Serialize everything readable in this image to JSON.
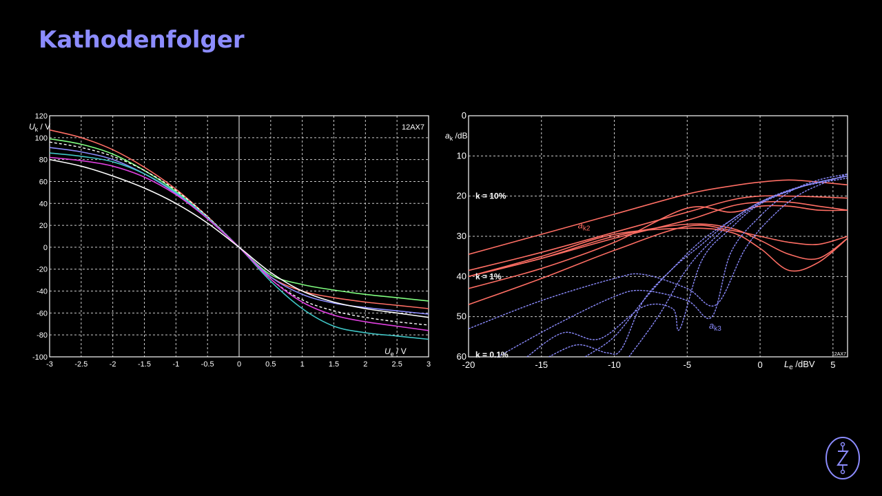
{
  "slide": {
    "title": "Kathodenfolger"
  },
  "colors": {
    "title": "#8c8cff",
    "grid": "#cfcfcf",
    "red": "#ff6e64",
    "blue": "#8c8cff"
  },
  "chart_data": [
    {
      "type": "line",
      "annotation": "12AX7",
      "ylabel_main": "U",
      "ylabel_sub": "k",
      "ylabel_unit": " / V",
      "xlabel_main": "U",
      "xlabel_sub": "e",
      "xlabel_unit": " / V",
      "xlim": [
        -3,
        3
      ],
      "ylim": [
        -100,
        120
      ],
      "xticks": [
        -3,
        -2.5,
        -2,
        -1.5,
        -1,
        -0.5,
        0,
        0.5,
        1,
        1.5,
        2,
        2.5,
        3
      ],
      "xtick_labels": [
        "-3",
        "-2.5",
        "-2",
        "-1.5",
        "-1",
        "-0.5",
        "0",
        "0.5",
        "1",
        "1.5",
        "2",
        "2.5",
        "3"
      ],
      "yticks": [
        -100,
        -80,
        -60,
        -40,
        -20,
        0,
        20,
        40,
        60,
        80,
        100,
        120
      ],
      "ytick_labels": [
        "-100",
        "-80",
        "-60",
        "-40",
        "-20",
        "0",
        "20",
        "40",
        "60",
        "80",
        "100",
        "120"
      ],
      "grid": true,
      "series": [
        {
          "color": "#ff6e64",
          "dashed": false,
          "x": [
            -3,
            -2.5,
            -2,
            -1.5,
            -1,
            -0.5,
            0,
            0.5,
            1,
            1.5,
            2,
            2.5,
            3
          ],
          "y": [
            107,
            100,
            89,
            73,
            53,
            28,
            0,
            -27,
            -40,
            -46,
            -50,
            -53,
            -56
          ]
        },
        {
          "color": "#80ff80",
          "dashed": false,
          "x": [
            -3,
            -2.5,
            -2,
            -1.5,
            -1,
            -0.5,
            0,
            0.5,
            1,
            1.5,
            2,
            2.5,
            3
          ],
          "y": [
            99,
            94,
            85,
            70,
            51,
            27,
            0,
            -25,
            -34,
            -39,
            -43,
            -46,
            -49
          ]
        },
        {
          "color": "#ffffff",
          "dashed": true,
          "x": [
            -3,
            -2.5,
            -2,
            -1.5,
            -1,
            -0.5,
            0,
            0.5,
            1,
            1.5,
            2,
            2.5,
            3
          ],
          "y": [
            96,
            91,
            83,
            70,
            52,
            28,
            0,
            -29,
            -48,
            -58,
            -64,
            -68,
            -71
          ]
        },
        {
          "color": "#8c8cff",
          "dashed": false,
          "x": [
            -3,
            -2.5,
            -2,
            -1.5,
            -1,
            -0.5,
            0,
            0.5,
            1,
            1.5,
            2,
            2.5,
            3
          ],
          "y": [
            91,
            87,
            80,
            67,
            49,
            26,
            0,
            -27,
            -43,
            -51,
            -55,
            -58,
            -61
          ]
        },
        {
          "color": "#40c8c8",
          "dashed": false,
          "x": [
            -3,
            -2.5,
            -2,
            -1.5,
            -1,
            -0.5,
            0,
            0.5,
            1,
            1.5,
            2,
            2.5,
            3
          ],
          "y": [
            86,
            83,
            78,
            67,
            50,
            27,
            0,
            -31,
            -56,
            -72,
            -78,
            -81,
            -84
          ]
        },
        {
          "color": "#e040e0",
          "dashed": false,
          "x": [
            -3,
            -2.5,
            -2,
            -1.5,
            -1,
            -0.5,
            0,
            0.5,
            1,
            1.5,
            2,
            2.5,
            3
          ],
          "y": [
            82,
            79,
            74,
            64,
            48,
            26,
            0,
            -29,
            -50,
            -62,
            -68,
            -72,
            -76
          ]
        },
        {
          "color": "#ffffff",
          "dashed": false,
          "x": [
            -3,
            -2.5,
            -2,
            -1.5,
            -1,
            -0.5,
            0,
            0.5,
            1,
            1.5,
            2,
            2.5,
            3
          ],
          "y": [
            80,
            74,
            65,
            54,
            40,
            22,
            0,
            -23,
            -40,
            -50,
            -56,
            -60,
            -64
          ]
        }
      ]
    },
    {
      "type": "line",
      "ylabel_main": "a",
      "ylabel_sub": "k",
      "ylabel_unit": " /dB",
      "xlabel_main": "L",
      "xlabel_sub": "e",
      "xlabel_unit": " /dBV",
      "xlim": [
        -20,
        6
      ],
      "ylim": [
        0,
        60
      ],
      "y_inverted": true,
      "xticks": [
        -20,
        -15,
        -10,
        -5,
        0,
        5
      ],
      "xtick_labels": [
        "-20",
        "-15",
        "-10",
        "-5",
        "0",
        "5"
      ],
      "yticks": [
        0,
        10,
        20,
        30,
        40,
        50,
        60
      ],
      "ytick_labels": [
        "0",
        "10",
        "20",
        "30",
        "40",
        "50",
        "60"
      ],
      "grid": true,
      "annotations": [
        {
          "text": "k = 10%",
          "x": -20,
          "y": 20
        },
        {
          "text": "k = 1%",
          "x": -20,
          "y": 40
        },
        {
          "text": "k = 0.1%",
          "x": -20,
          "y": 60
        }
      ],
      "series_labels": [
        {
          "main": "a",
          "sub": "k2",
          "color": "#ff6e64",
          "x": -12.5,
          "y": 28
        },
        {
          "main": "a",
          "sub": "k3",
          "color": "#8c8cff",
          "x": -3.5,
          "y": 53
        }
      ],
      "corner_label": "12AX7",
      "series": [
        {
          "group": "k2",
          "color": "#ff6e64",
          "dashed": false,
          "x": [
            -20,
            -15,
            -10,
            -5,
            -2,
            0,
            2,
            4,
            6
          ],
          "y": [
            34.5,
            29.5,
            24.5,
            19.5,
            17.5,
            16.5,
            16,
            16.5,
            17.2
          ]
        },
        {
          "group": "k2",
          "color": "#ff6e64",
          "dashed": false,
          "x": [
            -20,
            -15,
            -10,
            -5,
            -2,
            0,
            2,
            4,
            6
          ],
          "y": [
            38.5,
            34,
            29,
            24,
            21,
            20,
            20,
            20.2,
            20.5
          ]
        },
        {
          "group": "k2",
          "color": "#ff6e64",
          "dashed": false,
          "x": [
            -20,
            -15,
            -10,
            -5,
            -2,
            0,
            2,
            4,
            6
          ],
          "y": [
            40,
            35.5,
            30.5,
            26,
            22.5,
            21.5,
            21.5,
            22.5,
            23.5
          ]
        },
        {
          "group": "k2",
          "color": "#ff6e64",
          "dashed": false,
          "x": [
            -20,
            -15,
            -10,
            -5,
            -2,
            0,
            2,
            4,
            6
          ],
          "y": [
            43,
            38,
            31.5,
            23,
            24,
            22.5,
            22.5,
            23.5,
            23.5
          ]
        },
        {
          "group": "k2",
          "color": "#ff6e64",
          "dashed": false,
          "x": [
            -20,
            -15,
            -10,
            -5,
            -2,
            0,
            2,
            4,
            6
          ],
          "y": [
            47,
            40.5,
            33.5,
            27.5,
            28.5,
            30,
            31.5,
            32,
            30
          ]
        },
        {
          "group": "k2",
          "color": "#ff6e64",
          "dashed": false,
          "x": [
            -20,
            -15,
            -10,
            -5,
            -2,
            0,
            2,
            4,
            6
          ],
          "y": [
            40,
            35.5,
            30,
            27,
            28,
            31,
            34.5,
            35.5,
            30.5
          ]
        },
        {
          "group": "k2",
          "color": "#ff6e64",
          "dashed": false,
          "x": [
            -20,
            -15,
            -10,
            -5,
            -2,
            0,
            2,
            4,
            6
          ],
          "y": [
            40,
            35,
            29.5,
            28,
            29,
            33,
            38.5,
            36.5,
            30.5
          ]
        },
        {
          "group": "k3",
          "color": "#8c8cff",
          "dashed": true,
          "x": [
            -20,
            -15,
            -10,
            -8,
            -5,
            -3,
            -1,
            1,
            3,
            6
          ],
          "y": [
            53,
            46,
            40.5,
            39.5,
            43,
            47,
            33,
            24.5,
            19,
            14.5
          ]
        },
        {
          "group": "k3",
          "color": "#8c8cff",
          "dashed": true,
          "x": [
            -18,
            -14,
            -10,
            -8,
            -5,
            -3.3,
            -2,
            0,
            2,
            4,
            6
          ],
          "y": [
            60,
            52,
            45,
            43.5,
            46,
            50,
            34,
            25,
            19,
            16,
            14.5
          ]
        },
        {
          "group": "k3",
          "color": "#8c8cff",
          "dashed": true,
          "x": [
            -16,
            -13.5,
            -11,
            -8,
            -6,
            -5.5,
            -4,
            -2,
            0,
            3,
            6
          ],
          "y": [
            60,
            54,
            55.5,
            47.5,
            48,
            53,
            36,
            28,
            22,
            17.5,
            15
          ]
        },
        {
          "group": "k3",
          "color": "#8c8cff",
          "dashed": true,
          "x": [
            -14.5,
            -12.5,
            -10.5,
            -9.5,
            -8,
            -6,
            -4,
            -2,
            0,
            3,
            6
          ],
          "y": [
            60,
            57,
            59,
            58,
            46,
            38,
            31,
            26,
            21.5,
            17.5,
            15
          ]
        },
        {
          "group": "k3",
          "color": "#8c8cff",
          "dashed": true,
          "x": [
            -12,
            -10,
            -8,
            -6,
            -4,
            -2,
            0,
            2,
            4,
            6
          ],
          "y": [
            60,
            55,
            46,
            38,
            32,
            26,
            21.5,
            18.5,
            16.5,
            15
          ]
        },
        {
          "group": "k3",
          "color": "#8c8cff",
          "dashed": true,
          "x": [
            -9,
            -7,
            -5,
            -3,
            -1,
            1,
            3,
            6
          ],
          "y": [
            60,
            50,
            38,
            30,
            24,
            20,
            17.5,
            15.5
          ]
        }
      ]
    }
  ]
}
